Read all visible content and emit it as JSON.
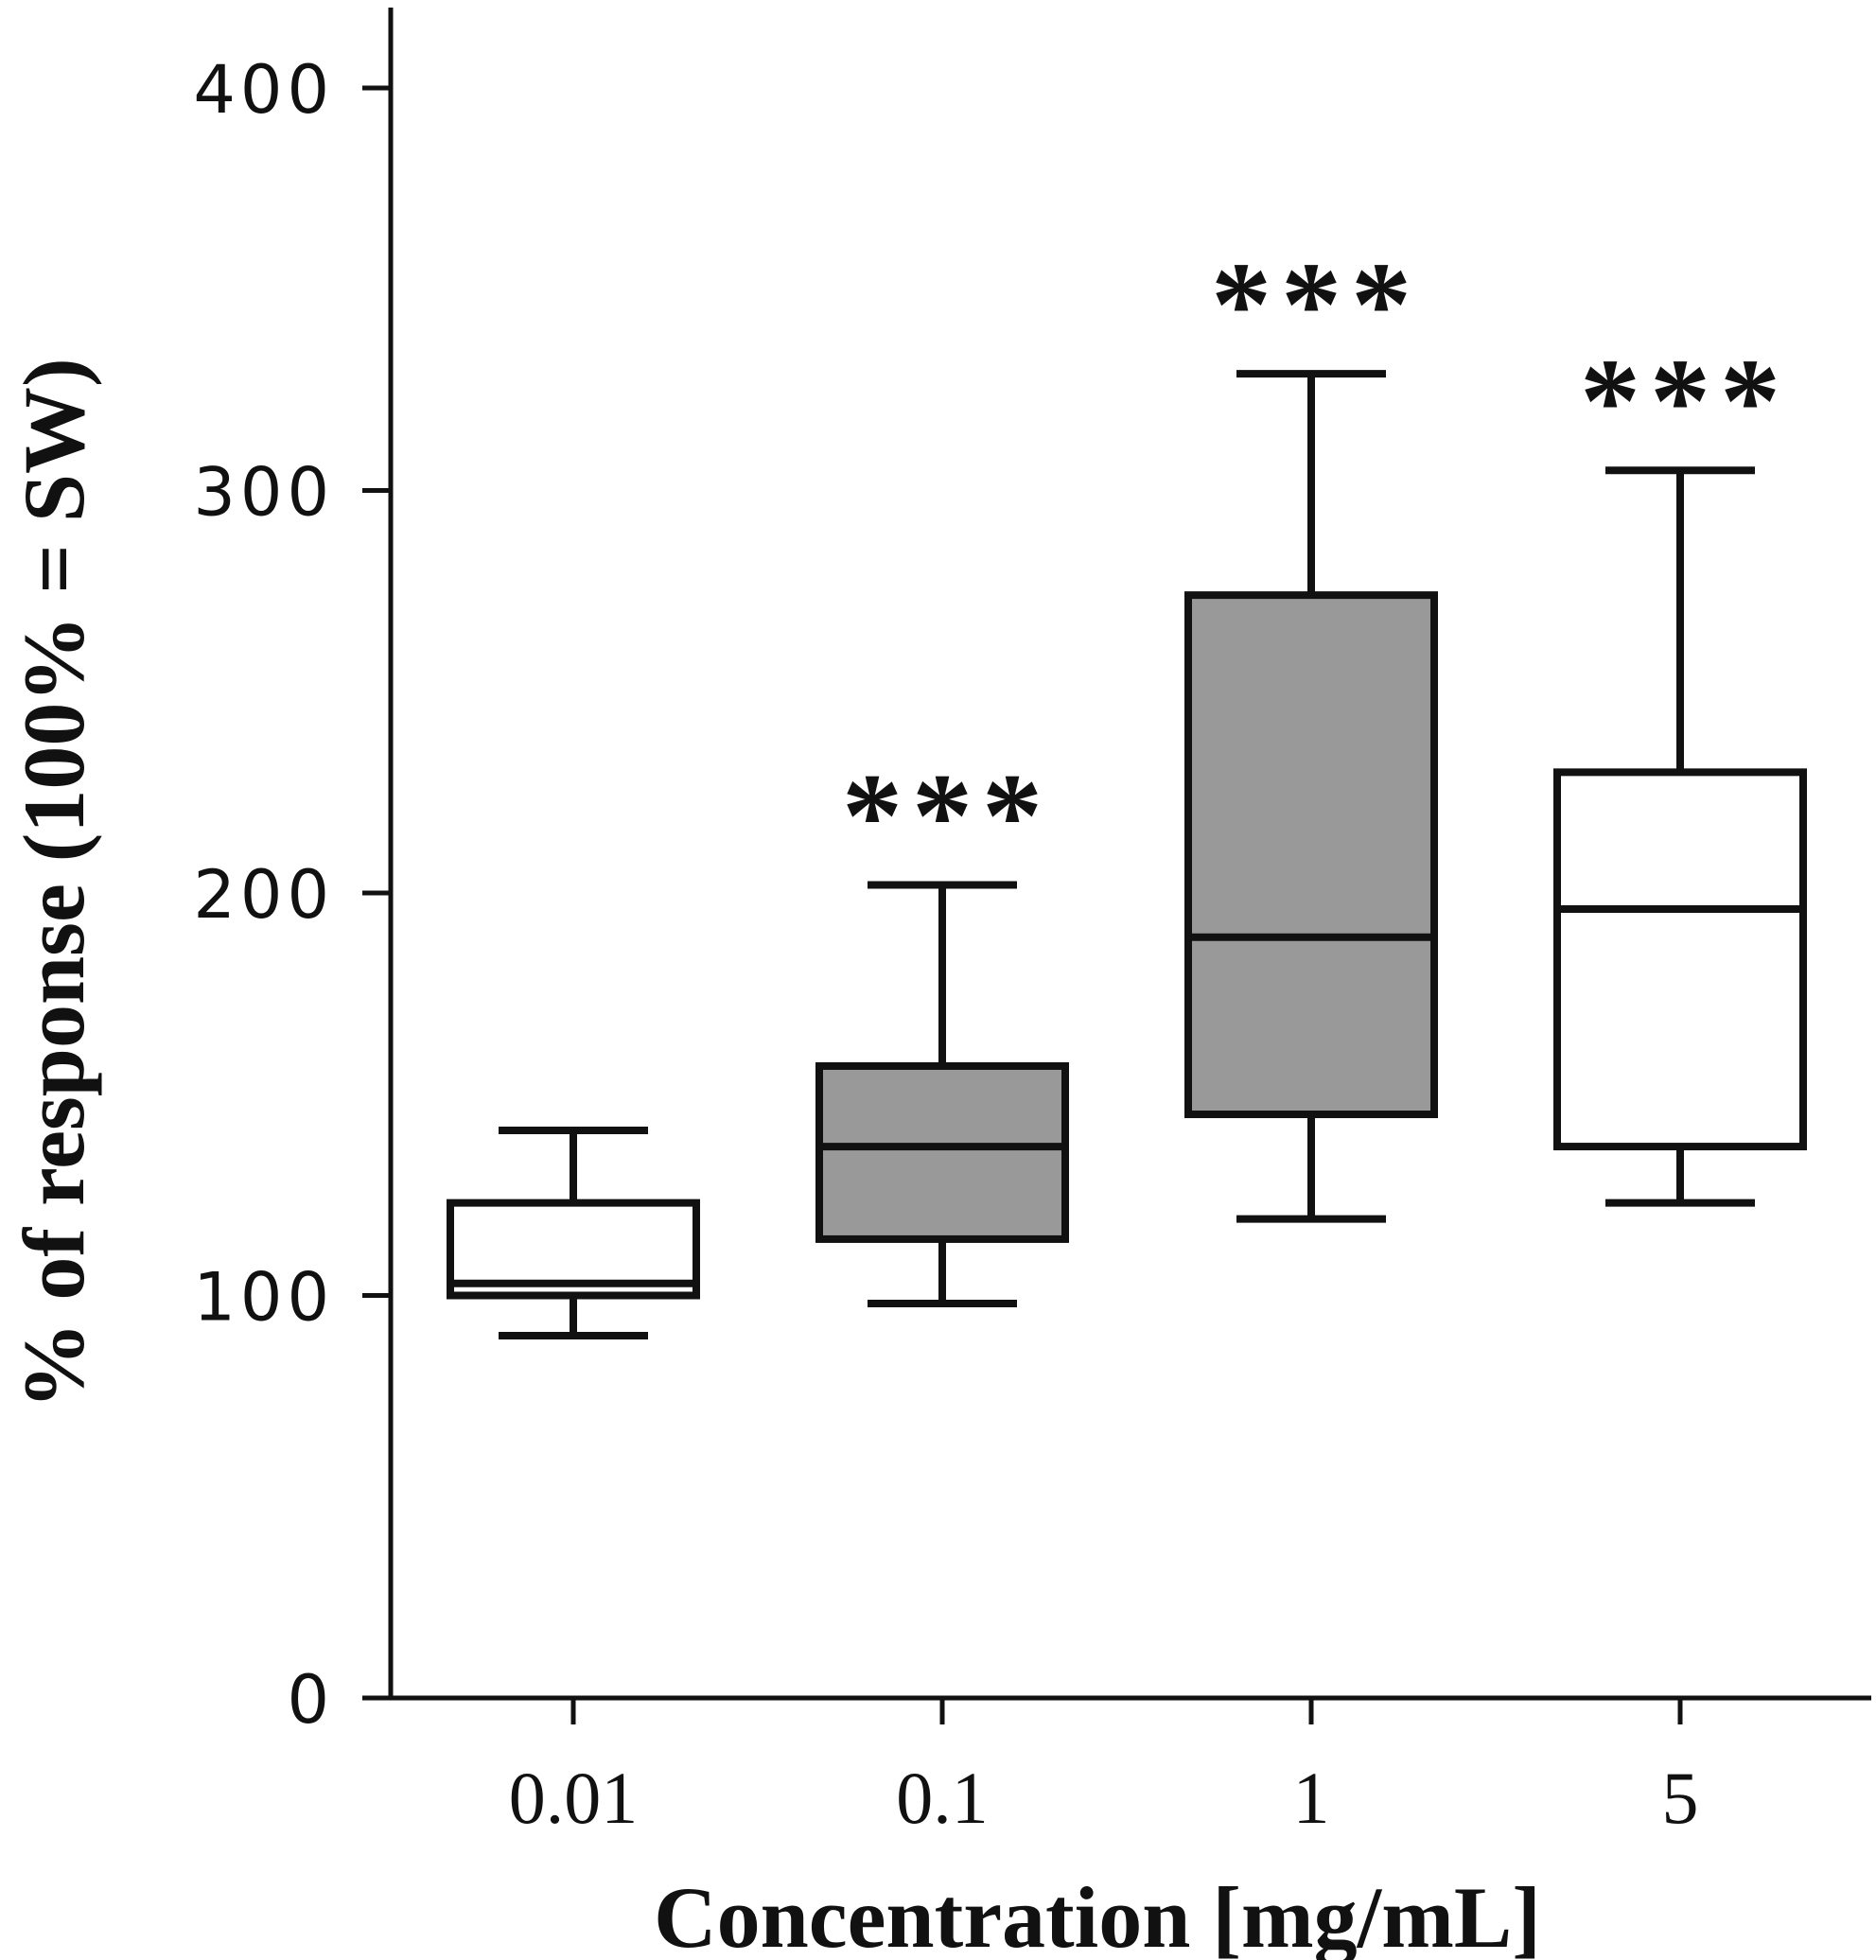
{
  "chart_data": {
    "type": "boxplot",
    "title": "",
    "xlabel": "Concentration [mg/mL]",
    "ylabel": "% of response (100% = SW)",
    "ylim": [
      0,
      420
    ],
    "yticks": [
      0,
      100,
      200,
      300,
      400
    ],
    "ytick_labels": [
      "0",
      "100",
      "200",
      "300",
      "400"
    ],
    "categories": [
      "0.01",
      "0.1",
      "1",
      "5"
    ],
    "grid": false,
    "boxes": [
      {
        "category": "0.01",
        "min": 90,
        "q1": 100,
        "median": 103,
        "q3": 123,
        "max": 141,
        "fill": "#ffffff",
        "significance": ""
      },
      {
        "category": "0.1",
        "min": 98,
        "q1": 114,
        "median": 137,
        "q3": 157,
        "max": 202,
        "fill": "#999999",
        "significance": "***"
      },
      {
        "category": "1",
        "min": 119,
        "q1": 145,
        "median": 189,
        "q3": 274,
        "max": 329,
        "fill": "#999999",
        "significance": "***"
      },
      {
        "category": "5",
        "min": 123,
        "q1": 137,
        "median": 196,
        "q3": 230,
        "max": 305,
        "fill": "#ffffff",
        "significance": "***"
      }
    ]
  }
}
